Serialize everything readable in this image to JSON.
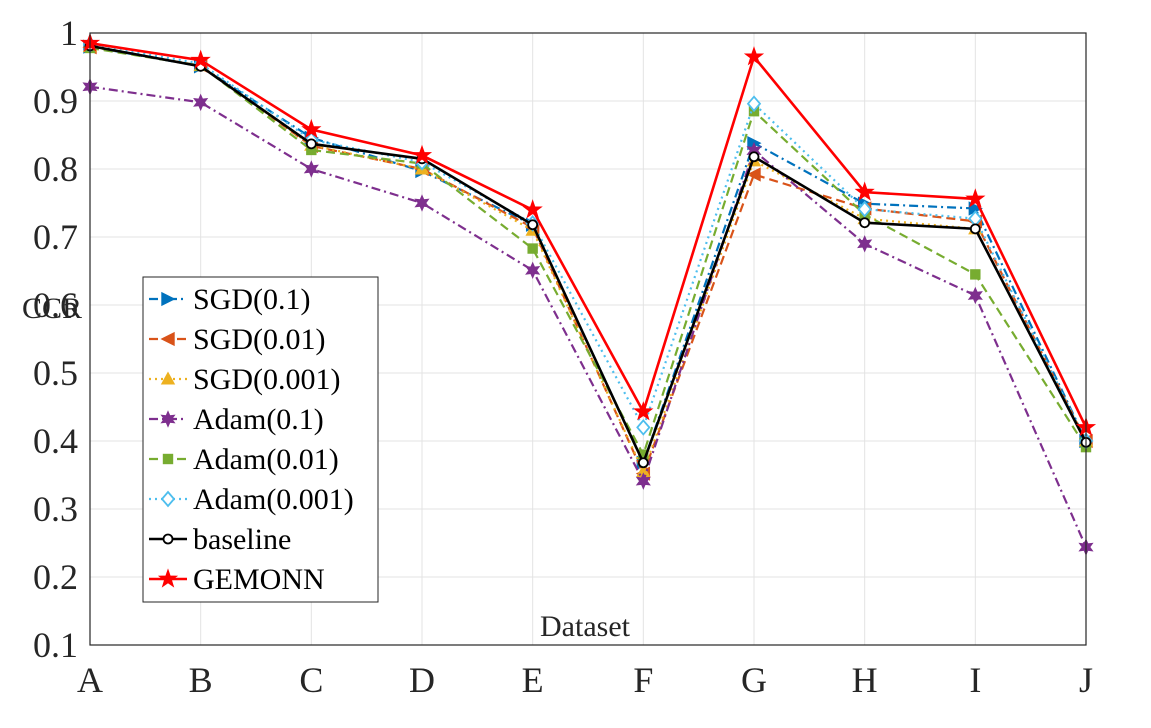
{
  "chart_data": {
    "type": "line",
    "title": "",
    "xlabel": "Dataset",
    "ylabel": "CCR",
    "categories": [
      "A",
      "B",
      "C",
      "D",
      "E",
      "F",
      "G",
      "H",
      "I",
      "J"
    ],
    "ylim": [
      0.1,
      1
    ],
    "yticks": [
      "0.1",
      "0.2",
      "0.3",
      "0.4",
      "0.5",
      "0.6",
      "0.7",
      "0.8",
      "0.9",
      "1"
    ],
    "grid": true,
    "legend_position": "left",
    "series": [
      {
        "name": "SGD(0.1)",
        "color": "#0072BD",
        "dash": "dashdot",
        "marker": "triangle-right",
        "values": [
          0.98,
          0.951,
          0.846,
          0.797,
          0.718,
          0.368,
          0.838,
          0.749,
          0.742,
          0.4
        ]
      },
      {
        "name": "SGD(0.01)",
        "color": "#D95319",
        "dash": "dashed",
        "marker": "triangle-left",
        "values": [
          0.979,
          0.952,
          0.834,
          0.8,
          0.714,
          0.352,
          0.792,
          0.742,
          0.723,
          0.4
        ]
      },
      {
        "name": "SGD(0.001)",
        "color": "#EDB120",
        "dash": "dotted",
        "marker": "triangle-up",
        "values": [
          0.98,
          0.952,
          0.835,
          0.8,
          0.71,
          0.355,
          0.812,
          0.727,
          0.712,
          0.4
        ]
      },
      {
        "name": "Adam(0.1)",
        "color": "#7E2F8E",
        "dash": "dashdot",
        "marker": "hexagram",
        "values": [
          0.921,
          0.898,
          0.8,
          0.75,
          0.651,
          0.341,
          0.827,
          0.69,
          0.614,
          0.244
        ]
      },
      {
        "name": "Adam(0.01)",
        "color": "#77AC30",
        "dash": "dashed",
        "marker": "square",
        "values": [
          0.978,
          0.952,
          0.828,
          0.808,
          0.683,
          0.38,
          0.885,
          0.733,
          0.645,
          0.391
        ]
      },
      {
        "name": "Adam(0.001)",
        "color": "#4DBEEE",
        "dash": "dotted",
        "marker": "diamond",
        "values": [
          0.983,
          0.955,
          0.843,
          0.81,
          0.72,
          0.42,
          0.896,
          0.741,
          0.727,
          0.4
        ]
      },
      {
        "name": "baseline",
        "color": "#000000",
        "dash": "solid",
        "marker": "circle",
        "values": [
          0.981,
          0.951,
          0.837,
          0.815,
          0.718,
          0.368,
          0.818,
          0.721,
          0.712,
          0.398
        ]
      },
      {
        "name": "GEMONN",
        "color": "#FF0000",
        "dash": "solid",
        "marker": "pentagram",
        "values": [
          0.985,
          0.96,
          0.858,
          0.82,
          0.74,
          0.443,
          0.965,
          0.766,
          0.756,
          0.42
        ]
      }
    ]
  }
}
